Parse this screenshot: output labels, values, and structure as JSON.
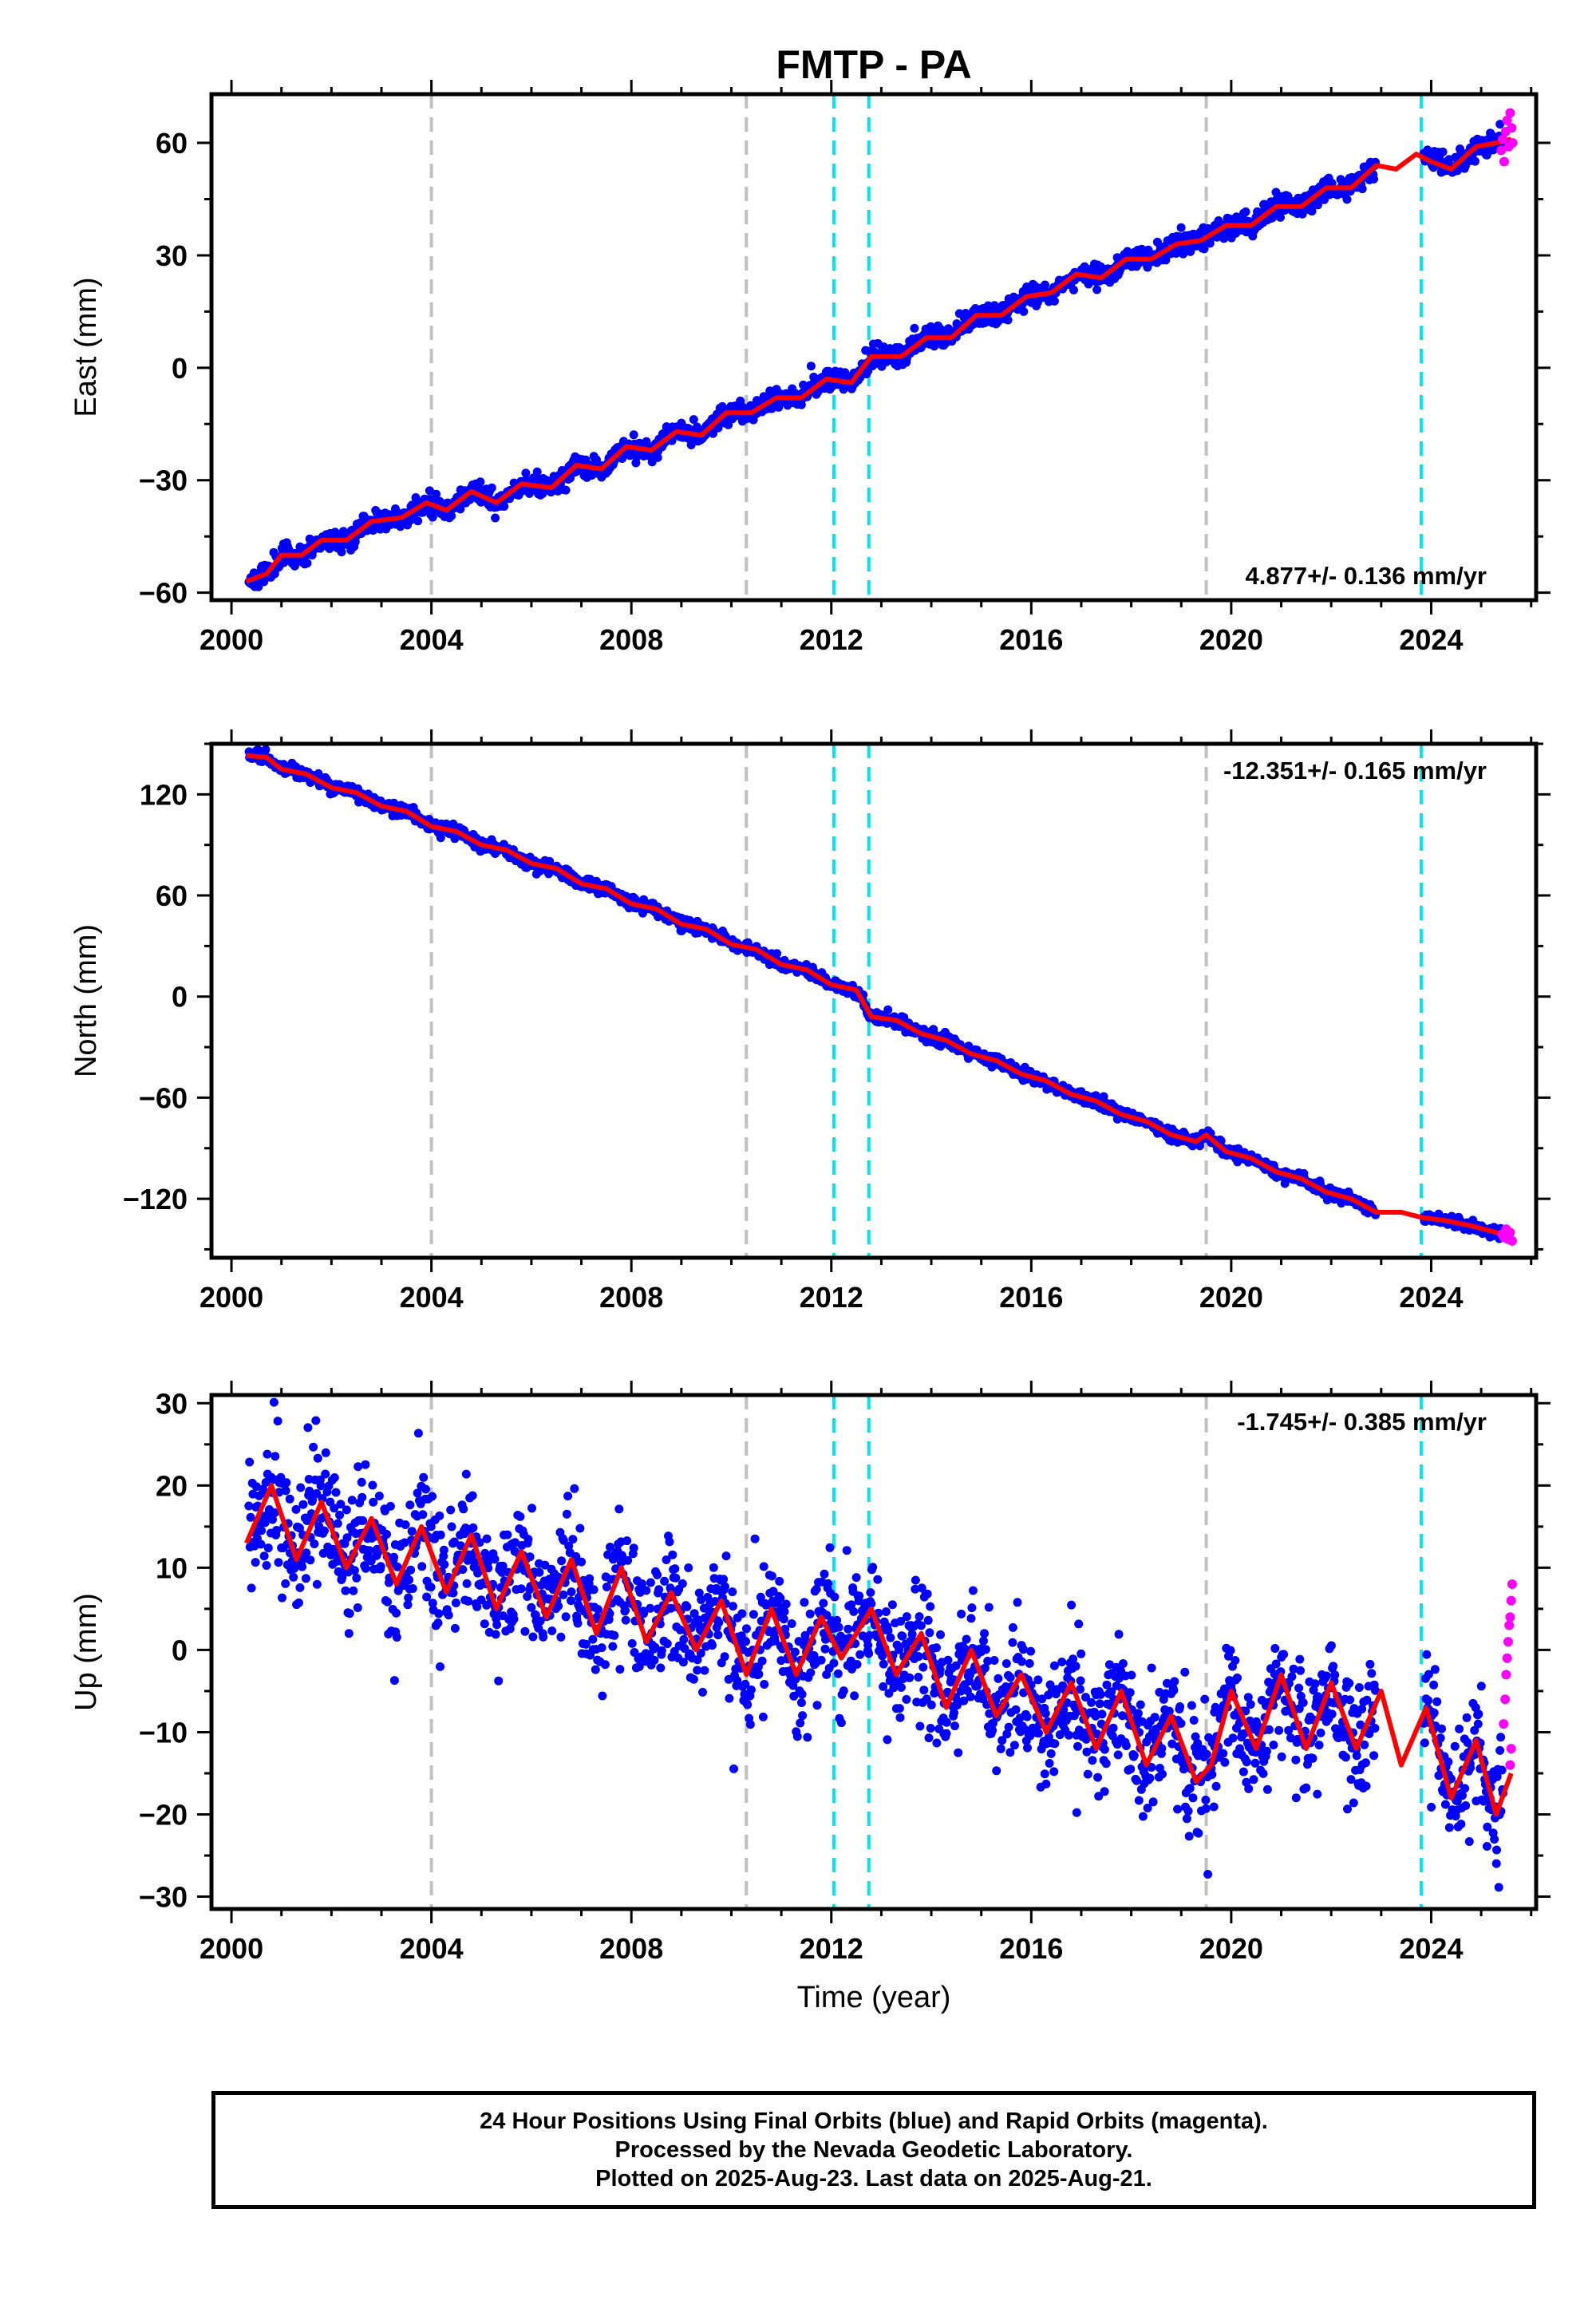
{
  "title": "FMTP - PA",
  "xlabel": "Time (year)",
  "colors": {
    "final": "#0000ff",
    "rapid": "#ff00ff",
    "model": "#ff0000",
    "event_gray": "#c0c0c0",
    "event_cyan": "#00e5ee"
  },
  "events": {
    "gray": [
      2004.0,
      2010.3,
      2019.5
    ],
    "cyan": [
      2012.05,
      2012.75,
      2023.8
    ]
  },
  "chart_data": [
    {
      "type": "scatter",
      "name": "east",
      "ylabel": "East (mm)",
      "rate": "4.877+/- 0.136 mm/yr",
      "xlim": [
        1999.6,
        2026.1
      ],
      "ylim": [
        -62,
        73
      ],
      "xticks": [
        2000,
        2004,
        2008,
        2012,
        2016,
        2020,
        2024
      ],
      "yticks": [
        -60,
        -30,
        0,
        30,
        60
      ],
      "model_points": [
        [
          2000.3,
          -57
        ],
        [
          2000.7,
          -55
        ],
        [
          2001.0,
          -50
        ],
        [
          2001.4,
          -50
        ],
        [
          2001.8,
          -46
        ],
        [
          2002.3,
          -46
        ],
        [
          2002.8,
          -41
        ],
        [
          2003.4,
          -40
        ],
        [
          2003.9,
          -36
        ],
        [
          2004.3,
          -38
        ],
        [
          2004.8,
          -33
        ],
        [
          2005.3,
          -36
        ],
        [
          2005.8,
          -31
        ],
        [
          2006.4,
          -32
        ],
        [
          2006.9,
          -26
        ],
        [
          2007.4,
          -27
        ],
        [
          2007.9,
          -21
        ],
        [
          2008.4,
          -22
        ],
        [
          2008.9,
          -17
        ],
        [
          2009.4,
          -18
        ],
        [
          2009.9,
          -12
        ],
        [
          2010.4,
          -12
        ],
        [
          2010.9,
          -8
        ],
        [
          2011.4,
          -8
        ],
        [
          2011.9,
          -3
        ],
        [
          2012.4,
          -4
        ],
        [
          2012.8,
          3
        ],
        [
          2013.4,
          3
        ],
        [
          2013.9,
          8
        ],
        [
          2014.4,
          8
        ],
        [
          2014.9,
          14
        ],
        [
          2015.4,
          14
        ],
        [
          2015.9,
          19
        ],
        [
          2016.4,
          20
        ],
        [
          2016.9,
          25
        ],
        [
          2017.4,
          24
        ],
        [
          2017.9,
          29
        ],
        [
          2018.4,
          29
        ],
        [
          2018.9,
          33
        ],
        [
          2019.4,
          34
        ],
        [
          2019.9,
          38
        ],
        [
          2020.4,
          38
        ],
        [
          2020.9,
          43
        ],
        [
          2021.4,
          43
        ],
        [
          2021.9,
          48
        ],
        [
          2022.4,
          48
        ],
        [
          2022.9,
          54
        ],
        [
          2023.3,
          53
        ],
        [
          2023.7,
          57
        ],
        [
          2024.0,
          55
        ],
        [
          2024.4,
          53
        ],
        [
          2024.9,
          59
        ],
        [
          2025.3,
          60
        ],
        [
          2025.6,
          61
        ]
      ],
      "rapid_points": [
        [
          2025.4,
          58
        ],
        [
          2025.43,
          61
        ],
        [
          2025.46,
          55
        ],
        [
          2025.49,
          63
        ],
        [
          2025.52,
          66
        ],
        [
          2025.55,
          59
        ],
        [
          2025.58,
          68
        ],
        [
          2025.61,
          64
        ],
        [
          2025.63,
          60
        ]
      ]
    },
    {
      "type": "scatter",
      "name": "north",
      "ylabel": "North (mm)",
      "rate": "-12.351+/- 0.165 mm/yr",
      "xlim": [
        1999.6,
        2026.1
      ],
      "ylim": [
        -155,
        150
      ],
      "xticks": [
        2000,
        2004,
        2008,
        2012,
        2016,
        2020,
        2024
      ],
      "yticks": [
        -120,
        -60,
        0,
        60,
        120
      ],
      "model_points": [
        [
          2000.3,
          143
        ],
        [
          2000.7,
          142
        ],
        [
          2001.0,
          135
        ],
        [
          2001.5,
          132
        ],
        [
          2002.0,
          124
        ],
        [
          2002.5,
          121
        ],
        [
          2003.0,
          113
        ],
        [
          2003.5,
          110
        ],
        [
          2004.0,
          101
        ],
        [
          2004.5,
          98
        ],
        [
          2005.0,
          90
        ],
        [
          2005.5,
          87
        ],
        [
          2006.0,
          79
        ],
        [
          2006.5,
          76
        ],
        [
          2007.0,
          67
        ],
        [
          2007.5,
          64
        ],
        [
          2008.0,
          55
        ],
        [
          2008.5,
          52
        ],
        [
          2009.0,
          43
        ],
        [
          2009.5,
          40
        ],
        [
          2010.0,
          31
        ],
        [
          2010.5,
          28
        ],
        [
          2011.0,
          19
        ],
        [
          2011.5,
          16
        ],
        [
          2012.0,
          7
        ],
        [
          2012.5,
          4
        ],
        [
          2012.8,
          -12
        ],
        [
          2013.3,
          -14
        ],
        [
          2013.8,
          -22
        ],
        [
          2014.3,
          -26
        ],
        [
          2014.8,
          -34
        ],
        [
          2015.3,
          -38
        ],
        [
          2015.8,
          -46
        ],
        [
          2016.3,
          -50
        ],
        [
          2016.8,
          -58
        ],
        [
          2017.3,
          -62
        ],
        [
          2017.8,
          -70
        ],
        [
          2018.3,
          -74
        ],
        [
          2018.8,
          -82
        ],
        [
          2019.3,
          -86
        ],
        [
          2019.5,
          -82
        ],
        [
          2019.9,
          -92
        ],
        [
          2020.4,
          -96
        ],
        [
          2020.9,
          -104
        ],
        [
          2021.4,
          -108
        ],
        [
          2021.9,
          -116
        ],
        [
          2022.4,
          -120
        ],
        [
          2022.9,
          -128
        ],
        [
          2023.4,
          -128
        ],
        [
          2023.8,
          -131
        ],
        [
          2024.3,
          -133
        ],
        [
          2024.8,
          -136
        ],
        [
          2025.3,
          -140
        ],
        [
          2025.6,
          -143
        ]
      ],
      "rapid_points": [
        [
          2025.42,
          -141
        ],
        [
          2025.46,
          -143
        ],
        [
          2025.5,
          -138
        ],
        [
          2025.54,
          -144
        ],
        [
          2025.58,
          -140
        ],
        [
          2025.62,
          -145
        ]
      ]
    },
    {
      "type": "scatter",
      "name": "up",
      "ylabel": "Up (mm)",
      "rate": "-1.745+/- 0.385 mm/yr",
      "xlim": [
        1999.6,
        2026.1
      ],
      "ylim": [
        -31.5,
        31
      ],
      "xticks": [
        2000,
        2004,
        2008,
        2012,
        2016,
        2020,
        2024
      ],
      "yticks": [
        -30,
        -20,
        -10,
        0,
        10,
        20,
        30
      ],
      "model_points": [
        [
          2000.3,
          13
        ],
        [
          2000.8,
          20
        ],
        [
          2001.3,
          11
        ],
        [
          2001.8,
          18
        ],
        [
          2002.3,
          10
        ],
        [
          2002.8,
          16
        ],
        [
          2003.3,
          8
        ],
        [
          2003.8,
          15
        ],
        [
          2004.3,
          7
        ],
        [
          2004.8,
          14
        ],
        [
          2005.3,
          5
        ],
        [
          2005.8,
          12
        ],
        [
          2006.3,
          4
        ],
        [
          2006.8,
          11
        ],
        [
          2007.3,
          2
        ],
        [
          2007.8,
          10
        ],
        [
          2008.3,
          1
        ],
        [
          2008.8,
          7
        ],
        [
          2009.3,
          0
        ],
        [
          2009.8,
          6
        ],
        [
          2010.3,
          -3
        ],
        [
          2010.8,
          5
        ],
        [
          2011.3,
          -3
        ],
        [
          2011.8,
          4
        ],
        [
          2012.2,
          -1
        ],
        [
          2012.8,
          5
        ],
        [
          2013.3,
          -3
        ],
        [
          2013.8,
          2
        ],
        [
          2014.3,
          -7
        ],
        [
          2014.8,
          0
        ],
        [
          2015.3,
          -8
        ],
        [
          2015.8,
          -3
        ],
        [
          2016.3,
          -10
        ],
        [
          2016.8,
          -4
        ],
        [
          2017.3,
          -12
        ],
        [
          2017.8,
          -5
        ],
        [
          2018.3,
          -14
        ],
        [
          2018.8,
          -8
        ],
        [
          2019.3,
          -16
        ],
        [
          2019.6,
          -14
        ],
        [
          2020.0,
          -5
        ],
        [
          2020.5,
          -12
        ],
        [
          2021.0,
          -3
        ],
        [
          2021.5,
          -12
        ],
        [
          2022.0,
          -4
        ],
        [
          2022.5,
          -12
        ],
        [
          2023.0,
          -5
        ],
        [
          2023.4,
          -14
        ],
        [
          2023.9,
          -7
        ],
        [
          2024.4,
          -18
        ],
        [
          2024.9,
          -11
        ],
        [
          2025.3,
          -20
        ],
        [
          2025.6,
          -15
        ]
      ],
      "rapid_points": [
        [
          2025.45,
          -9
        ],
        [
          2025.48,
          -6
        ],
        [
          2025.5,
          -3
        ],
        [
          2025.52,
          -1
        ],
        [
          2025.54,
          1
        ],
        [
          2025.56,
          3
        ],
        [
          2025.58,
          4
        ],
        [
          2025.6,
          6
        ],
        [
          2025.62,
          8
        ],
        [
          2025.6,
          -12
        ],
        [
          2025.58,
          -14
        ]
      ]
    }
  ],
  "footer": {
    "line1": "24 Hour Positions Using Final Orbits (blue) and Rapid Orbits (magenta).",
    "line2": "Processed by the Nevada Geodetic Laboratory.",
    "line3": "Plotted on 2025-Aug-23. Last data on 2025-Aug-21."
  }
}
